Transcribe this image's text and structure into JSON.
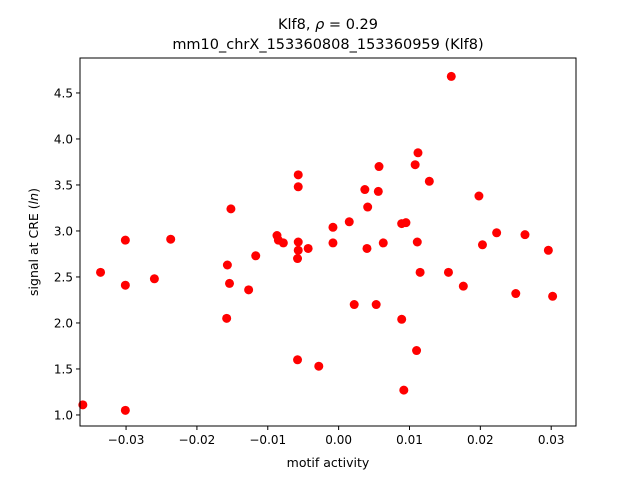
{
  "chart_data": {
    "type": "scatter",
    "title_line1_prefix": "Klf8, ",
    "title_line1_symbol": "ρ",
    "title_line1_suffix": " = 0.29",
    "title_line2": "mm10_chrX_153360808_153360959 (Klf8)",
    "xlabel": "motif activity",
    "ylabel_prefix": "signal at CRE (",
    "ylabel_italic": "ln",
    "ylabel_suffix": ")",
    "xlim": [
      -0.0365,
      0.0335
    ],
    "ylim": [
      0.88,
      4.88
    ],
    "x_ticks": [
      -0.03,
      -0.02,
      -0.01,
      0.0,
      0.01,
      0.02,
      0.03
    ],
    "x_tick_labels": [
      "−0.03",
      "−0.02",
      "−0.01",
      "0.00",
      "0.01",
      "0.02",
      "0.03"
    ],
    "y_ticks": [
      1.0,
      1.5,
      2.0,
      2.5,
      3.0,
      3.5,
      4.0,
      4.5
    ],
    "y_tick_labels": [
      "1.0",
      "1.5",
      "2.0",
      "2.5",
      "3.0",
      "3.5",
      "4.0",
      "4.5"
    ],
    "marker_color": "#ff0000",
    "grid": false,
    "points": [
      {
        "x": -0.0361,
        "y": 1.11
      },
      {
        "x": -0.0301,
        "y": 1.05
      },
      {
        "x": -0.0336,
        "y": 2.55
      },
      {
        "x": -0.0301,
        "y": 2.9
      },
      {
        "x": -0.0301,
        "y": 2.41
      },
      {
        "x": -0.026,
        "y": 2.48
      },
      {
        "x": -0.0237,
        "y": 2.91
      },
      {
        "x": -0.0157,
        "y": 2.63
      },
      {
        "x": -0.0154,
        "y": 2.43
      },
      {
        "x": -0.0152,
        "y": 3.24
      },
      {
        "x": -0.0158,
        "y": 2.05
      },
      {
        "x": -0.0127,
        "y": 2.36
      },
      {
        "x": -0.0117,
        "y": 2.73
      },
      {
        "x": -0.0087,
        "y": 2.95
      },
      {
        "x": -0.0085,
        "y": 2.9
      },
      {
        "x": -0.0078,
        "y": 2.87
      },
      {
        "x": -0.0057,
        "y": 3.61
      },
      {
        "x": -0.0057,
        "y": 3.48
      },
      {
        "x": -0.0057,
        "y": 2.88
      },
      {
        "x": -0.0057,
        "y": 2.79
      },
      {
        "x": -0.0058,
        "y": 2.7
      },
      {
        "x": -0.0043,
        "y": 2.81
      },
      {
        "x": -0.0058,
        "y": 1.6
      },
      {
        "x": -0.0028,
        "y": 1.53
      },
      {
        "x": -0.0008,
        "y": 3.04
      },
      {
        "x": -0.0008,
        "y": 2.87
      },
      {
        "x": 0.0015,
        "y": 3.1
      },
      {
        "x": 0.0022,
        "y": 2.2
      },
      {
        "x": 0.0037,
        "y": 3.45
      },
      {
        "x": 0.0041,
        "y": 3.26
      },
      {
        "x": 0.004,
        "y": 2.81
      },
      {
        "x": 0.0053,
        "y": 2.2
      },
      {
        "x": 0.0056,
        "y": 3.43
      },
      {
        "x": 0.0057,
        "y": 3.7
      },
      {
        "x": 0.0063,
        "y": 2.87
      },
      {
        "x": 0.0089,
        "y": 3.08
      },
      {
        "x": 0.0095,
        "y": 3.09
      },
      {
        "x": 0.0089,
        "y": 2.04
      },
      {
        "x": 0.0092,
        "y": 1.27
      },
      {
        "x": 0.0108,
        "y": 3.72
      },
      {
        "x": 0.0112,
        "y": 3.85
      },
      {
        "x": 0.0111,
        "y": 2.88
      },
      {
        "x": 0.0115,
        "y": 2.55
      },
      {
        "x": 0.011,
        "y": 1.7
      },
      {
        "x": 0.0128,
        "y": 3.54
      },
      {
        "x": 0.0155,
        "y": 2.55
      },
      {
        "x": 0.0159,
        "y": 4.68
      },
      {
        "x": 0.0176,
        "y": 2.4
      },
      {
        "x": 0.0198,
        "y": 3.38
      },
      {
        "x": 0.0203,
        "y": 2.85
      },
      {
        "x": 0.0223,
        "y": 2.98
      },
      {
        "x": 0.025,
        "y": 2.32
      },
      {
        "x": 0.0263,
        "y": 2.96
      },
      {
        "x": 0.0296,
        "y": 2.79
      },
      {
        "x": 0.0302,
        "y": 2.29
      }
    ]
  }
}
